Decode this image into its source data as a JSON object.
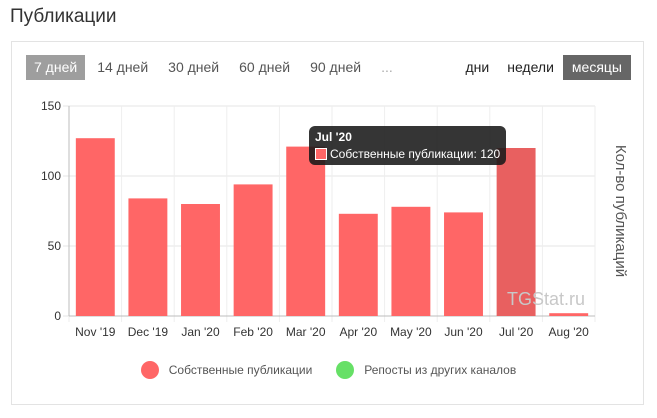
{
  "page": {
    "title": "Публикации"
  },
  "range_tabs": [
    {
      "label": "7 дней",
      "active": true
    },
    {
      "label": "14 дней",
      "active": false
    },
    {
      "label": "30 дней",
      "active": false
    },
    {
      "label": "60 дней",
      "active": false
    },
    {
      "label": "90 дней",
      "active": false
    },
    {
      "label": "...",
      "active": false
    }
  ],
  "period_tabs": [
    {
      "label": "дни",
      "active": false
    },
    {
      "label": "недели",
      "active": false
    },
    {
      "label": "месяцы",
      "active": true
    }
  ],
  "chart_data": {
    "type": "bar",
    "categories": [
      "Nov '19",
      "Dec '19",
      "Jan '20",
      "Feb '20",
      "Mar '20",
      "Apr '20",
      "May '20",
      "Jun '20",
      "Jul '20",
      "Aug '20"
    ],
    "series": [
      {
        "name": "Собственные публикации",
        "values": [
          127,
          84,
          80,
          94,
          121,
          73,
          78,
          74,
          120,
          2
        ],
        "color": "#ff6666"
      },
      {
        "name": "Репосты из других каналов",
        "values": [
          0,
          0,
          0,
          0,
          0,
          0,
          0,
          0,
          0,
          0
        ],
        "color": "#66e066"
      }
    ],
    "ylabel": "Кол-во публикаций",
    "ylim": [
      0,
      150
    ],
    "yticks": [
      0,
      50,
      100,
      150
    ],
    "grid": true,
    "legend": "bottom",
    "highlighted_index": 8
  },
  "tooltip": {
    "title": "Jul '20",
    "series_label": "Собственные публикации",
    "value": "120"
  },
  "watermark": "TGStat.ru"
}
